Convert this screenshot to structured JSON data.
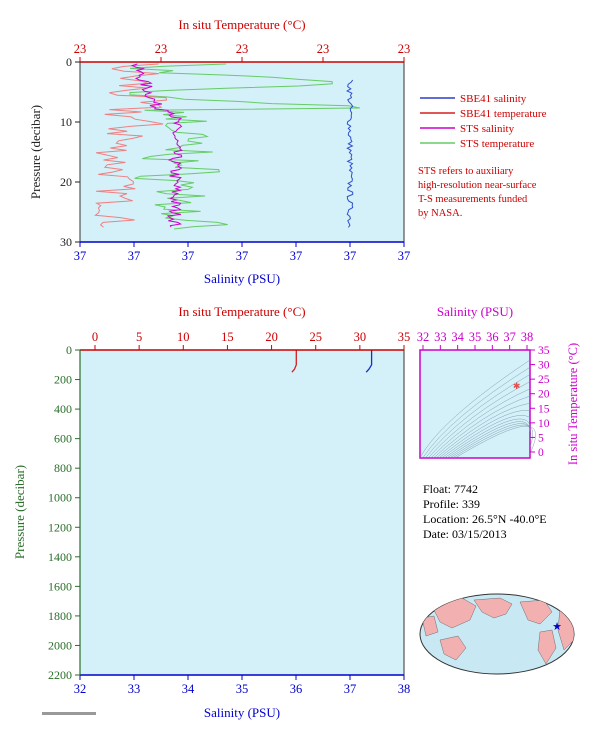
{
  "top_chart": {
    "top_axis_title": "In situ Temperature (°C)",
    "top_ticks": [
      "23",
      "23",
      "23",
      "23",
      "23"
    ],
    "bottom_axis_title": "Salinity (PSU)",
    "bottom_ticks": [
      "37",
      "37",
      "37",
      "37",
      "37",
      "37",
      "37"
    ],
    "left_axis_title": "Pressure (decibar)",
    "left_ticks": [
      "0",
      "10",
      "20",
      "30"
    ],
    "legend": [
      {
        "label": "SBE41 salinity",
        "color": "#2b3fc8"
      },
      {
        "label": "SBE41 temperature",
        "color": "#d42020"
      },
      {
        "label": "STS salinity",
        "color": "#cc00cc"
      },
      {
        "label": "STS temperature",
        "color": "#66cc66"
      }
    ],
    "note": [
      "STS refers to auxiliary",
      "high-resolution near-surface",
      "T-S measurements funded",
      "by NASA."
    ]
  },
  "main_chart": {
    "top_axis_title": "In situ Temperature (°C)",
    "top_ticks": [
      "0",
      "5",
      "10",
      "15",
      "20",
      "25",
      "30",
      "35"
    ],
    "bottom_axis_title": "Salinity (PSU)",
    "bottom_ticks": [
      "32",
      "33",
      "34",
      "35",
      "36",
      "37",
      "38"
    ],
    "left_axis_title": "Pressure (decibar)",
    "left_ticks": [
      "0",
      "200",
      "400",
      "600",
      "800",
      "1000",
      "1200",
      "1400",
      "1600",
      "1800",
      "2000",
      "2200"
    ]
  },
  "ts_chart": {
    "top_axis_title": "Salinity (PSU)",
    "top_ticks": [
      "32",
      "33",
      "34",
      "35",
      "36",
      "37",
      "38"
    ],
    "right_axis_title": "In situ Temperature (°C)",
    "right_ticks": [
      "35",
      "30",
      "25",
      "20",
      "15",
      "10",
      "5",
      "0"
    ]
  },
  "info": {
    "float": "Float:  7742",
    "profile": "Profile:  339",
    "location": "Location:  26.5°N  -40.0°E",
    "date": "Date:  03/15/2013"
  },
  "chart_data": [
    {
      "type": "line",
      "title": "",
      "xlabel": "In situ Temperature (°C) / Salinity (PSU)",
      "ylabel": "Pressure (decibar)",
      "ylim": [
        30,
        0
      ],
      "series": [
        {
          "name": "SBE41 salinity",
          "note": "near 37 PSU, 3–28 dbar"
        },
        {
          "name": "SBE41 temperature"
        },
        {
          "name": "STS salinity"
        },
        {
          "name": "STS temperature"
        }
      ]
    },
    {
      "type": "line",
      "xlabel": "Salinity (PSU)",
      "ylabel": "Pressure (decibar)",
      "xlim": [
        32,
        38
      ],
      "x2lim": [
        0,
        35
      ],
      "ylim": [
        2200,
        0
      ],
      "series": [
        {
          "name": "temperature",
          "x": [
            22.8,
            22.8,
            22.6,
            22.3
          ],
          "y": [
            0,
            100,
            130,
            150
          ]
        },
        {
          "name": "salinity",
          "x": [
            37.4,
            37.4,
            37.35,
            37.3
          ],
          "y": [
            0,
            100,
            130,
            150
          ]
        }
      ]
    },
    {
      "type": "scatter",
      "xlabel": "Salinity (PSU)",
      "ylabel": "In situ Temperature (°C)",
      "xlim": [
        32,
        38
      ],
      "ylim": [
        -2.5,
        35
      ],
      "points": [
        {
          "x": 37.4,
          "y": 23
        }
      ]
    }
  ]
}
